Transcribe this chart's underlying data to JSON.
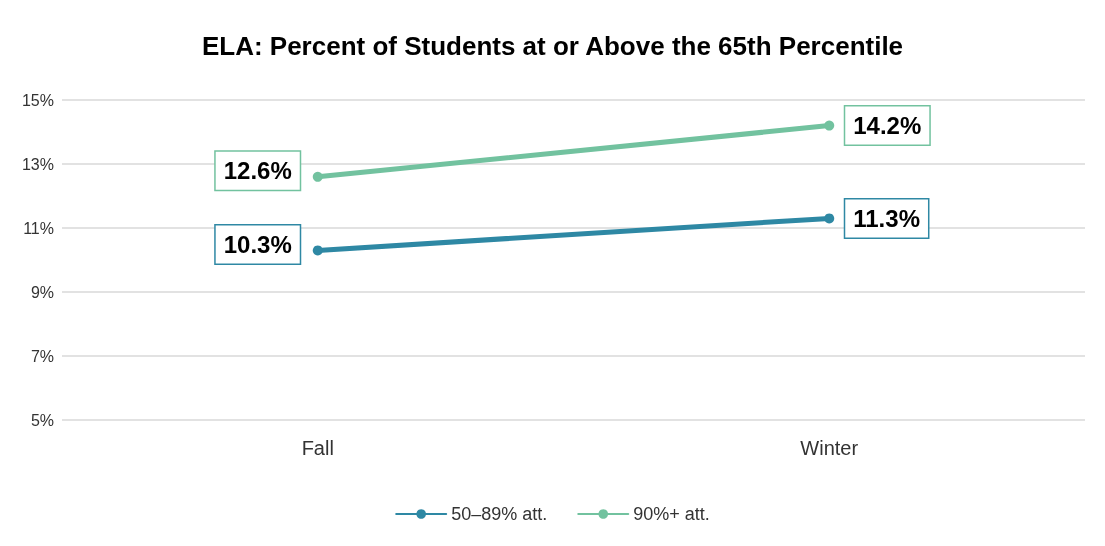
{
  "chart_data": {
    "type": "line",
    "title": "ELA: Percent of Students at or Above the 65th Percentile",
    "categories": [
      "Fall",
      "Winter"
    ],
    "series": [
      {
        "name": "50–89% att.",
        "color": "#2e88a4",
        "values": [
          10.3,
          11.3
        ],
        "value_labels": [
          "10.3%",
          "11.3%"
        ]
      },
      {
        "name": "90%+ att.",
        "color": "#72c29f",
        "values": [
          12.6,
          14.2
        ],
        "value_labels": [
          "12.6%",
          "14.2%"
        ]
      }
    ],
    "ylim": [
      5,
      15
    ],
    "yticks": [
      {
        "value": 5,
        "label": "5%"
      },
      {
        "value": 7,
        "label": "7%"
      },
      {
        "value": 9,
        "label": "9%"
      },
      {
        "value": 11,
        "label": "11%"
      },
      {
        "value": 13,
        "label": "13%"
      },
      {
        "value": 15,
        "label": "15%"
      }
    ],
    "grid": "y",
    "legend": "bottom",
    "marker": "circle",
    "line_style": "solid"
  }
}
